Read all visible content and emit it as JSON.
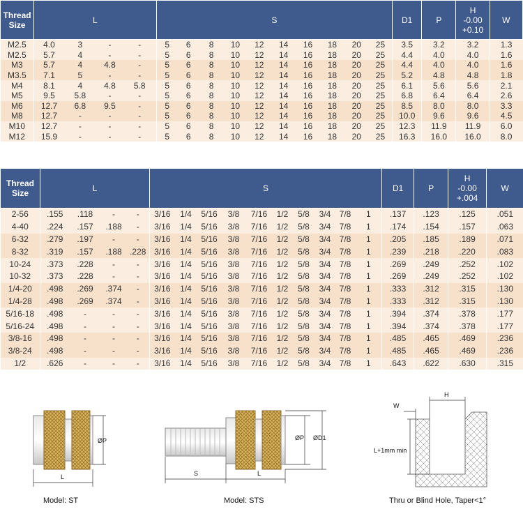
{
  "table1": {
    "headers": {
      "thread": "Thread Size",
      "l": "L",
      "s": "S",
      "d1": "D1",
      "p": "P",
      "h_line1": "H",
      "h_line2": "-0.00",
      "h_line3": "+0.10",
      "w": "W"
    },
    "rows": [
      {
        "thread": "M2.5",
        "l": [
          "4.0",
          "3",
          "-",
          "-"
        ],
        "s": [
          "5",
          "6",
          "8",
          "10",
          "12",
          "14",
          "16",
          "18",
          "20",
          "25"
        ],
        "d1": "3.5",
        "p": "3.2",
        "h": "3.2",
        "w": "1.3"
      },
      {
        "thread": "M2.5",
        "l": [
          "5.7",
          "4",
          "-",
          "-"
        ],
        "s": [
          "5",
          "6",
          "8",
          "10",
          "12",
          "14",
          "16",
          "18",
          "20",
          "25"
        ],
        "d1": "4.4",
        "p": "4.0",
        "h": "4.0",
        "w": "1.6"
      },
      {
        "thread": "M3",
        "l": [
          "5.7",
          "4",
          "4.8",
          "-"
        ],
        "s": [
          "5",
          "6",
          "8",
          "10",
          "12",
          "14",
          "16",
          "18",
          "20",
          "25"
        ],
        "d1": "4.4",
        "p": "4.0",
        "h": "4.0",
        "w": "1.6"
      },
      {
        "thread": "M3.5",
        "l": [
          "7.1",
          "5",
          "-",
          "-"
        ],
        "s": [
          "5",
          "6",
          "8",
          "10",
          "12",
          "14",
          "16",
          "18",
          "20",
          "25"
        ],
        "d1": "5.2",
        "p": "4.8",
        "h": "4.8",
        "w": "1.8"
      },
      {
        "thread": "M4",
        "l": [
          "8.1",
          "4",
          "4.8",
          "5.8"
        ],
        "s": [
          "5",
          "6",
          "8",
          "10",
          "12",
          "14",
          "16",
          "18",
          "20",
          "25"
        ],
        "d1": "6.1",
        "p": "5.6",
        "h": "5.6",
        "w": "2.1"
      },
      {
        "thread": "M5",
        "l": [
          "9.5",
          "5.8",
          "-",
          "-"
        ],
        "s": [
          "5",
          "6",
          "8",
          "10",
          "12",
          "14",
          "16",
          "18",
          "20",
          "25"
        ],
        "d1": "6.8",
        "p": "6.4",
        "h": "6.4",
        "w": "2.6"
      },
      {
        "thread": "M6",
        "l": [
          "12.7",
          "6.8",
          "9.5",
          "-"
        ],
        "s": [
          "5",
          "6",
          "8",
          "10",
          "12",
          "14",
          "16",
          "18",
          "20",
          "25"
        ],
        "d1": "8.5",
        "p": "8.0",
        "h": "8.0",
        "w": "3.3"
      },
      {
        "thread": "M8",
        "l": [
          "12.7",
          "-",
          "-",
          "-"
        ],
        "s": [
          "5",
          "6",
          "8",
          "10",
          "12",
          "14",
          "16",
          "18",
          "20",
          "25"
        ],
        "d1": "10.0",
        "p": "9.6",
        "h": "9.6",
        "w": "4.5"
      },
      {
        "thread": "M10",
        "l": [
          "12.7",
          "-",
          "-",
          "-"
        ],
        "s": [
          "5",
          "6",
          "8",
          "10",
          "12",
          "14",
          "16",
          "18",
          "20",
          "25"
        ],
        "d1": "12.3",
        "p": "11.9",
        "h": "11.9",
        "w": "6.0"
      },
      {
        "thread": "M12",
        "l": [
          "15.9",
          "-",
          "-",
          "-"
        ],
        "s": [
          "5",
          "6",
          "8",
          "10",
          "12",
          "14",
          "16",
          "18",
          "20",
          "25"
        ],
        "d1": "16.3",
        "p": "16.0",
        "h": "16.0",
        "w": "8.0"
      }
    ]
  },
  "table2": {
    "headers": {
      "thread": "Thread Size",
      "l": "L",
      "s": "S",
      "d1": "D1",
      "p": "P",
      "h_line1": "H",
      "h_line2": "-0.00",
      "h_line3": "+.004",
      "w": "W"
    },
    "rows": [
      {
        "thread": "2-56",
        "l": [
          ".155",
          ".118",
          "-",
          "-"
        ],
        "s": [
          "3/16",
          "1/4",
          "5/16",
          "3/8",
          "7/16",
          "1/2",
          "5/8",
          "3/4",
          "7/8",
          "1"
        ],
        "d1": ".137",
        "p": ".123",
        "h": ".125",
        "w": ".051"
      },
      {
        "thread": "4-40",
        "l": [
          ".224",
          ".157",
          ".188",
          "-"
        ],
        "s": [
          "3/16",
          "1/4",
          "5/16",
          "3/8",
          "7/16",
          "1/2",
          "5/8",
          "3/4",
          "7/8",
          "1"
        ],
        "d1": ".174",
        "p": ".154",
        "h": ".157",
        "w": ".063"
      },
      {
        "thread": "6-32",
        "l": [
          ".279",
          ".197",
          "-",
          "-"
        ],
        "s": [
          "3/16",
          "1/4",
          "5/16",
          "3/8",
          "7/16",
          "1/2",
          "5/8",
          "3/4",
          "7/8",
          "1"
        ],
        "d1": ".205",
        "p": ".185",
        "h": ".189",
        "w": ".071"
      },
      {
        "thread": "8-32",
        "l": [
          ".319",
          ".157",
          ".188",
          ".228"
        ],
        "s": [
          "3/16",
          "1/4",
          "5/16",
          "3/8",
          "7/16",
          "1/2",
          "5/8",
          "3/4",
          "7/8",
          "1"
        ],
        "d1": ".239",
        "p": ".218",
        "h": ".220",
        "w": ".083"
      },
      {
        "thread": "10-24",
        "l": [
          ".373",
          ".228",
          "-",
          "-"
        ],
        "s": [
          "3/16",
          "1/4",
          "5/16",
          "3/8",
          "7/16",
          "1/2",
          "5/8",
          "3/4",
          "7/8",
          "1"
        ],
        "d1": ".269",
        "p": ".249",
        "h": ".252",
        "w": ".102"
      },
      {
        "thread": "10-32",
        "l": [
          ".373",
          ".228",
          "-",
          "-"
        ],
        "s": [
          "3/16",
          "1/4",
          "5/16",
          "3/8",
          "7/16",
          "1/2",
          "5/8",
          "3/4",
          "7/8",
          "1"
        ],
        "d1": ".269",
        "p": ".249",
        "h": ".252",
        "w": ".102"
      },
      {
        "thread": "1/4-20",
        "l": [
          ".498",
          ".269",
          ".374",
          "-"
        ],
        "s": [
          "3/16",
          "1/4",
          "5/16",
          "3/8",
          "7/16",
          "1/2",
          "5/8",
          "3/4",
          "7/8",
          "1"
        ],
        "d1": ".333",
        "p": ".312",
        "h": ".315",
        "w": ".130"
      },
      {
        "thread": "1/4-28",
        "l": [
          ".498",
          ".269",
          ".374",
          "-"
        ],
        "s": [
          "3/16",
          "1/4",
          "5/16",
          "3/8",
          "7/16",
          "1/2",
          "5/8",
          "3/4",
          "7/8",
          "1"
        ],
        "d1": ".333",
        "p": ".312",
        "h": ".315",
        "w": ".130"
      },
      {
        "thread": "5/16-18",
        "l": [
          ".498",
          "-",
          "-",
          "-"
        ],
        "s": [
          "3/16",
          "1/4",
          "5/16",
          "3/8",
          "7/16",
          "1/2",
          "5/8",
          "3/4",
          "7/8",
          "1"
        ],
        "d1": ".394",
        "p": ".374",
        "h": ".378",
        "w": ".177"
      },
      {
        "thread": "5/16-24",
        "l": [
          ".498",
          "-",
          "-",
          "-"
        ],
        "s": [
          "3/16",
          "1/4",
          "5/16",
          "3/8",
          "7/16",
          "1/2",
          "5/8",
          "3/4",
          "7/8",
          "1"
        ],
        "d1": ".394",
        "p": ".374",
        "h": ".378",
        "w": ".177"
      },
      {
        "thread": "3/8-16",
        "l": [
          ".498",
          "-",
          "-",
          "-"
        ],
        "s": [
          "3/16",
          "1/4",
          "5/16",
          "3/8",
          "7/16",
          "1/2",
          "5/8",
          "3/4",
          "7/8",
          "1"
        ],
        "d1": ".485",
        "p": ".465",
        "h": ".469",
        "w": ".236"
      },
      {
        "thread": "3/8-24",
        "l": [
          ".498",
          "-",
          "-",
          "-"
        ],
        "s": [
          "3/16",
          "1/4",
          "5/16",
          "3/8",
          "7/16",
          "1/2",
          "5/8",
          "3/4",
          "7/8",
          "1"
        ],
        "d1": ".485",
        "p": ".465",
        "h": ".469",
        "w": ".236"
      },
      {
        "thread": "1/2",
        "l": [
          ".626",
          "-",
          "-",
          "-"
        ],
        "s": [
          "3/16",
          "1/4",
          "5/16",
          "3/8",
          "7/16",
          "1/2",
          "5/8",
          "3/4",
          "7/8",
          "1"
        ],
        "d1": ".643",
        "p": ".622",
        "h": ".630",
        "w": ".315"
      }
    ]
  },
  "drawings": {
    "st": {
      "caption": "Model: ST",
      "dim_p": "ØP",
      "dim_l": "L"
    },
    "sts": {
      "caption": "Model: STS",
      "dim_p": "ØP",
      "dim_d1": "ØD1",
      "dim_s": "S",
      "dim_l": "L"
    },
    "hole": {
      "caption": "Thru or Blind Hole, Taper<1°",
      "dim_w": "W",
      "dim_h": "H",
      "dim_depth": "L+1mm min"
    }
  },
  "colors": {
    "header_bg": "#3f5a8c",
    "row_light": "#fbeee0",
    "row_dark": "#f7e1cb",
    "knurl": "#c8a04a"
  }
}
